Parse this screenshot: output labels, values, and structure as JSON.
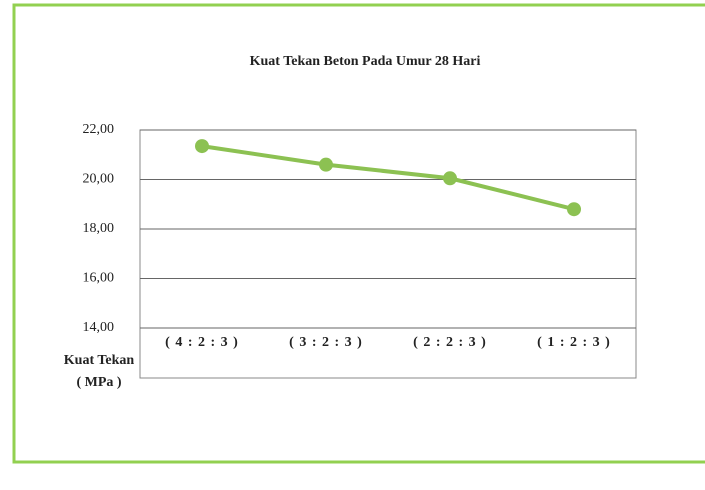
{
  "chart_data": {
    "type": "line",
    "title": "Kuat Tekan Beton Pada Umur 28 Hari",
    "y_label": "Kuat Tekan ( MPa )",
    "categories": [
      "( 4 : 2 : 3 )",
      "( 3 : 2 : 3 )",
      "( 2 : 2 : 3 )",
      "( 1 : 2 : 3 )"
    ],
    "series": [
      {
        "color": "#8cc152",
        "values": [
          21.35,
          20.6,
          20.05,
          18.8
        ]
      }
    ],
    "ylim": [
      14,
      22
    ],
    "yticks": [
      {
        "value": 14,
        "label": "14,00"
      },
      {
        "value": 16,
        "label": "16,00"
      },
      {
        "value": 18,
        "label": "18,00"
      },
      {
        "value": 20,
        "label": "20,00"
      },
      {
        "value": 22,
        "label": "22,00"
      }
    ],
    "grid": true
  }
}
